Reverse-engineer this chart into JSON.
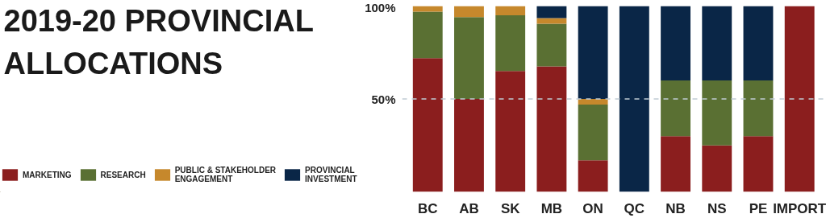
{
  "chart_data": {
    "type": "bar",
    "stacked": true,
    "title": "2019-20 PROVINCIAL\nALLOCATIONS",
    "categories": [
      "BC",
      "AB",
      "SK",
      "MB",
      "ON",
      "QC",
      "NB",
      "NS",
      "PE",
      "IMPORT"
    ],
    "series": [
      {
        "name": "MARKETING",
        "color": "#8b1e1e",
        "values": [
          72,
          50,
          65,
          67.5,
          17,
          0,
          30,
          25,
          30,
          100
        ]
      },
      {
        "name": "RESEARCH",
        "color": "#5a7033",
        "values": [
          25,
          44,
          30,
          23,
          30,
          0,
          30,
          35,
          30,
          0
        ]
      },
      {
        "name": "PUBLIC & STAKEHOLDER\nENGAGEMENT",
        "color": "#c6882c",
        "values": [
          3,
          6,
          5,
          3,
          3,
          0,
          0,
          0,
          0,
          0
        ]
      },
      {
        "name": "PROVINCIAL\nINVESTMENT",
        "color": "#0a2647",
        "values": [
          0,
          0,
          0,
          6.5,
          50,
          100,
          40,
          40,
          40,
          0
        ]
      }
    ],
    "ylim": [
      0,
      100
    ],
    "yticks": [
      {
        "value": 50,
        "label": "50%"
      },
      {
        "value": 100,
        "label": "100%"
      }
    ],
    "ref_lines": [
      {
        "axis": "y",
        "value": 50,
        "color": "#c0ccd4",
        "line_style": "dashed"
      }
    ],
    "grid": false,
    "legend": "left"
  }
}
